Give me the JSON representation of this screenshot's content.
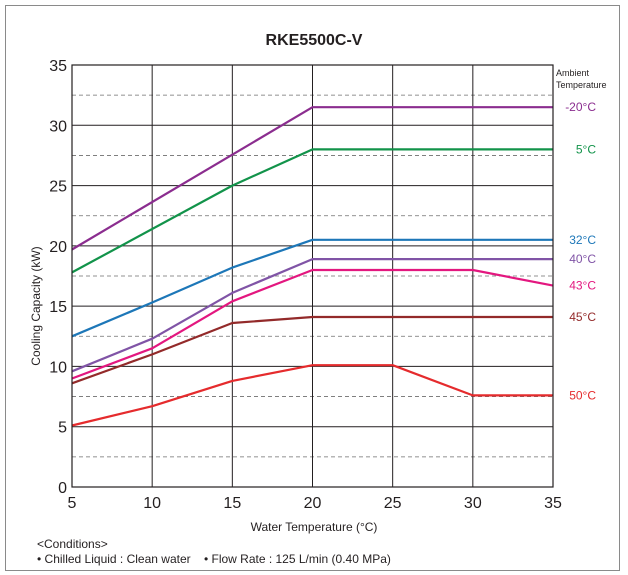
{
  "chart_data": {
    "type": "line",
    "title": "RKE5500C-V",
    "xlabel": "Water Temperature (°C)",
    "ylabel": "Cooling Capacity (kW)",
    "xlim": [
      5,
      35
    ],
    "ylim": [
      0,
      35
    ],
    "x_ticks": [
      5,
      10,
      15,
      20,
      25,
      30,
      35
    ],
    "y_ticks": [
      0,
      5,
      10,
      15,
      20,
      25,
      30,
      35
    ],
    "grid": true,
    "legend_title": [
      "Ambient",
      "Temperature"
    ],
    "legend_position": "right",
    "series": [
      {
        "name": "-20°C",
        "color": "#8b2d8f",
        "points": [
          [
            5,
            19.7
          ],
          [
            20,
            31.5
          ],
          [
            35,
            31.5
          ]
        ]
      },
      {
        "name": "5°C",
        "color": "#12934a",
        "points": [
          [
            5,
            17.8
          ],
          [
            15,
            25.0
          ],
          [
            20,
            28.0
          ],
          [
            35,
            28.0
          ]
        ]
      },
      {
        "name": "32°C",
        "color": "#1d77b8",
        "points": [
          [
            5,
            12.5
          ],
          [
            10,
            15.3
          ],
          [
            15,
            18.2
          ],
          [
            20,
            20.5
          ],
          [
            35,
            20.5
          ]
        ]
      },
      {
        "name": "40°C",
        "color": "#8054a6",
        "points": [
          [
            5,
            9.6
          ],
          [
            10,
            12.3
          ],
          [
            15,
            16.1
          ],
          [
            20,
            18.9
          ],
          [
            35,
            18.9
          ]
        ]
      },
      {
        "name": "43°C",
        "color": "#e3177f",
        "points": [
          [
            5,
            9.0
          ],
          [
            10,
            11.5
          ],
          [
            15,
            15.4
          ],
          [
            20,
            18.0
          ],
          [
            30,
            18.0
          ],
          [
            35,
            16.7
          ]
        ]
      },
      {
        "name": "45°C",
        "color": "#932a2a",
        "points": [
          [
            5,
            8.6
          ],
          [
            10,
            11.0
          ],
          [
            15,
            13.6
          ],
          [
            20,
            14.1
          ],
          [
            35,
            14.1
          ]
        ]
      },
      {
        "name": "50°C",
        "color": "#e52b2d",
        "points": [
          [
            5,
            5.1
          ],
          [
            10,
            6.7
          ],
          [
            15,
            8.8
          ],
          [
            20,
            10.1
          ],
          [
            25,
            10.1
          ],
          [
            30,
            7.6
          ],
          [
            35,
            7.6
          ]
        ]
      }
    ]
  },
  "conditions": {
    "heading": "<Conditions>",
    "line": "• Chilled Liquid : Clean water    • Flow Rate : 125 L/min (0.40 MPa)"
  }
}
